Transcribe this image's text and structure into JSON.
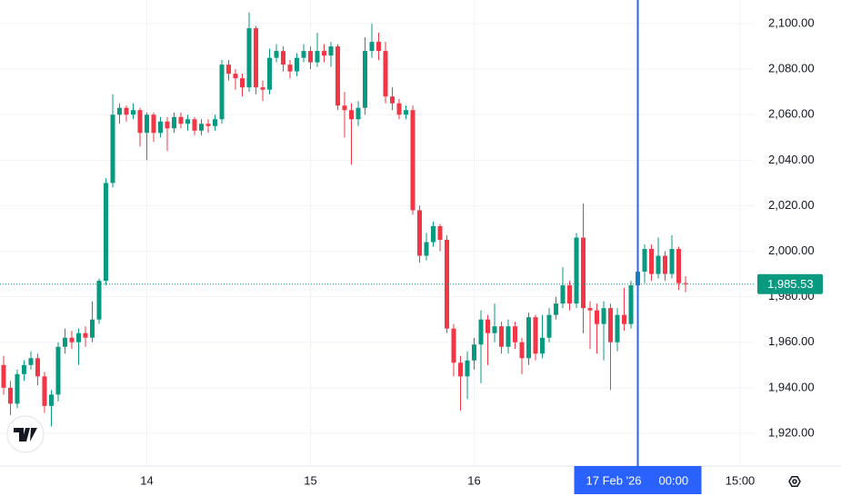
{
  "chart_data": {
    "type": "candlestick",
    "x": [
      0,
      1,
      2,
      3,
      4,
      5,
      6,
      7,
      8,
      9,
      10,
      11,
      12,
      13,
      14,
      15,
      16,
      17,
      18,
      19,
      20,
      21,
      22,
      23,
      24,
      25,
      26,
      27,
      28,
      29,
      30,
      31,
      32,
      33,
      34,
      35,
      36,
      37,
      38,
      39,
      40,
      41,
      42,
      43,
      44,
      45,
      46,
      47,
      48,
      49,
      50,
      51,
      52,
      53,
      54,
      55,
      56,
      57,
      58,
      59,
      60,
      61,
      62,
      63,
      64,
      65,
      66,
      67,
      68,
      69,
      70,
      71,
      72,
      73,
      74,
      75,
      76,
      77,
      78,
      79,
      80,
      81,
      82,
      83,
      84,
      85,
      86,
      87,
      88,
      89,
      90,
      91,
      92,
      93,
      94,
      95,
      96,
      97,
      98,
      99,
      100
    ],
    "open": [
      1950,
      1940,
      1933,
      1946,
      1950,
      1953,
      1945,
      1932,
      1937,
      1958,
      1962,
      1960,
      1964,
      1962,
      1970,
      1987,
      2030,
      2060,
      2063,
      2060,
      2062,
      2052,
      2060,
      2052,
      2057,
      2054,
      2059,
      2056,
      2058,
      2053,
      2056,
      2055,
      2058,
      2082,
      2078,
      2076,
      2072,
      2098,
      2072,
      2071,
      2085,
      2088,
      2082,
      2079,
      2085,
      2088,
      2083,
      2088,
      2086,
      2090,
      2064,
      2062,
      2058,
      2063,
      2088,
      2092,
      2088,
      2068,
      2065,
      2060,
      2062,
      2018,
      1998,
      2004,
      2011,
      2005,
      1966,
      1951,
      1945,
      1952,
      1959,
      1970,
      1964,
      1967,
      1958,
      1967,
      1960,
      1953,
      1971,
      1955,
      1962,
      1972,
      1977,
      1985,
      1977,
      2006,
      1975,
      1974,
      1968,
      1975,
      1960,
      1972,
      1968,
      1985,
      1991,
      2001,
      1990,
      1998,
      1990,
      2001,
      1986
    ],
    "high": [
      1954,
      1943,
      1948,
      1952,
      1956,
      1955,
      1947,
      1939,
      1960,
      1966,
      1965,
      1966,
      1967,
      1978,
      1988,
      2032,
      2069,
      2065,
      2064,
      2065,
      2063,
      2061,
      2061,
      2059,
      2059,
      2061,
      2061,
      2060,
      2059,
      2058,
      2058,
      2060,
      2084,
      2084,
      2080,
      2078,
      2105,
      2099,
      2075,
      2089,
      2091,
      2090,
      2084,
      2087,
      2091,
      2090,
      2096,
      2091,
      2092,
      2091,
      2070,
      2065,
      2066,
      2094,
      2100,
      2096,
      2092,
      2072,
      2067,
      2064,
      2064,
      2020,
      2008,
      2013,
      2012,
      2007,
      1968,
      1954,
      1956,
      1962,
      1974,
      1972,
      1977,
      1969,
      1970,
      1969,
      1962,
      1973,
      1972,
      1972,
      1975,
      1980,
      1993,
      1987,
      2008,
      2021,
      1978,
      1977,
      1978,
      1977,
      1975,
      1984,
      1987,
      1993,
      2003,
      2003,
      2006,
      2000,
      2007,
      2002,
      1989
    ],
    "low": [
      1937,
      1928,
      1931,
      1943,
      1948,
      1941,
      1929,
      1923,
      1934,
      1955,
      1957,
      1950,
      1958,
      1960,
      1968,
      1985,
      2028,
      2056,
      2057,
      2058,
      2046,
      2040,
      2048,
      2050,
      2044,
      2052,
      2054,
      2053,
      2051,
      2051,
      2052,
      2053,
      2056,
      2075,
      2071,
      2068,
      2070,
      2069,
      2066,
      2069,
      2083,
      2079,
      2076,
      2077,
      2083,
      2080,
      2081,
      2083,
      2081,
      2062,
      2050,
      2038,
      2055,
      2060,
      2085,
      2084,
      2065,
      2062,
      2058,
      2058,
      2016,
      1995,
      1996,
      2002,
      2000,
      1964,
      1945,
      1930,
      1935,
      1948,
      1942,
      1950,
      1960,
      1955,
      1955,
      1957,
      1946,
      1950,
      1952,
      1953,
      1960,
      1970,
      1975,
      1974,
      1975,
      1964,
      1957,
      1955,
      1952,
      1939,
      1956,
      1965,
      1966,
      1983,
      1986,
      1987,
      1988,
      1987,
      1988,
      1983,
      1982
    ],
    "close": [
      1940,
      1933,
      1946,
      1950,
      1953,
      1945,
      1932,
      1937,
      1958,
      1962,
      1960,
      1964,
      1962,
      1970,
      1987,
      2030,
      2060,
      2063,
      2060,
      2062,
      2052,
      2060,
      2052,
      2057,
      2054,
      2059,
      2056,
      2058,
      2053,
      2056,
      2055,
      2058,
      2082,
      2078,
      2076,
      2072,
      2098,
      2072,
      2071,
      2085,
      2088,
      2082,
      2079,
      2085,
      2088,
      2083,
      2088,
      2086,
      2090,
      2064,
      2062,
      2058,
      2063,
      2088,
      2092,
      2088,
      2068,
      2065,
      2060,
      2062,
      2018,
      1998,
      2004,
      2011,
      2005,
      1966,
      1951,
      1945,
      1952,
      1959,
      1970,
      1964,
      1967,
      1958,
      1967,
      1960,
      1953,
      1971,
      1955,
      1962,
      1972,
      1977,
      1985,
      1977,
      2006,
      1975,
      1974,
      1968,
      1975,
      1960,
      1972,
      1968,
      1985,
      1991,
      2001,
      1990,
      1998,
      1990,
      2001,
      1986,
      1985.53
    ],
    "up_color": "#089981",
    "down_color": "#f23645",
    "xlim": [
      -0.53,
      110.13
    ],
    "ylim": [
      1905.6,
      2110.4
    ],
    "xticks": [
      {
        "value": 21,
        "label": "14"
      },
      {
        "value": 45,
        "label": "15"
      },
      {
        "value": 69,
        "label": "16"
      },
      {
        "value": 108,
        "label": "15:00"
      }
    ],
    "yticks": [
      {
        "value": 1920,
        "label": "1,920.00"
      },
      {
        "value": 1940,
        "label": "1,940.00"
      },
      {
        "value": 1960,
        "label": "1,960.00"
      },
      {
        "value": 1980,
        "label": "1,980.00"
      },
      {
        "value": 2000,
        "label": "2,000.00"
      },
      {
        "value": 2020,
        "label": "2,020.00"
      },
      {
        "value": 2040,
        "label": "2,040.00"
      },
      {
        "value": 2060,
        "label": "2,060.00"
      },
      {
        "value": 2080,
        "label": "2,080.00"
      },
      {
        "value": 2100,
        "label": "2,100.00"
      }
    ],
    "grid": true,
    "last_price": {
      "value": 1985.53,
      "label": "1,985.53"
    },
    "crosshair": {
      "x": 93,
      "date": "17 Feb '26",
      "time": "00:00",
      "color": "#2962ff"
    }
  }
}
